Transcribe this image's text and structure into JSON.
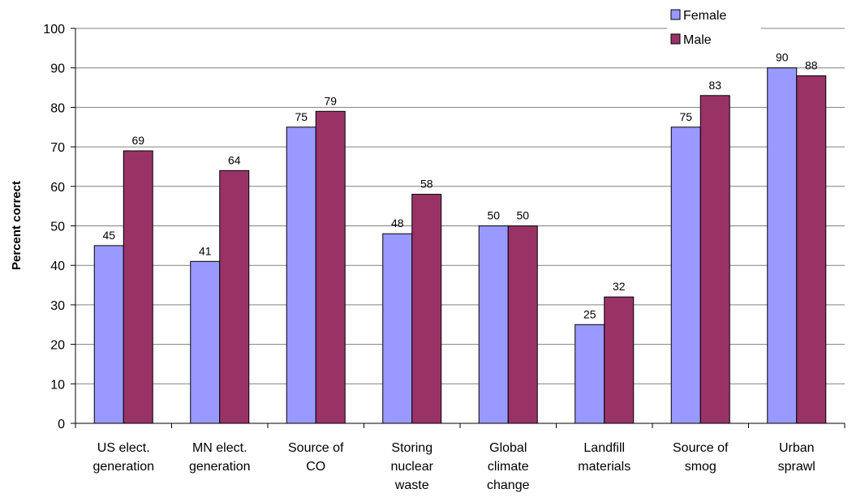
{
  "chart_data": {
    "type": "bar",
    "title": "",
    "xlabel": "",
    "ylabel": "Percent correct",
    "ylim": [
      0,
      100
    ],
    "yticks": [
      0,
      10,
      20,
      30,
      40,
      50,
      60,
      70,
      80,
      90,
      100
    ],
    "grid": true,
    "legend_position": "top-right",
    "categories": [
      [
        "US elect.",
        "generation"
      ],
      [
        "MN elect.",
        "generation"
      ],
      [
        "Source of",
        "CO"
      ],
      [
        "Storing",
        "nuclear",
        "waste"
      ],
      [
        "Global",
        "climate",
        "change"
      ],
      [
        "Landfill",
        "materials"
      ],
      [
        "Source of",
        "smog"
      ],
      [
        "Urban",
        "sprawl"
      ]
    ],
    "series": [
      {
        "name": "Female",
        "color": "#9999ff",
        "values": [
          45,
          41,
          75,
          48,
          50,
          25,
          75,
          90
        ]
      },
      {
        "name": "Male",
        "color": "#993366",
        "values": [
          69,
          64,
          79,
          58,
          50,
          32,
          83,
          88
        ]
      }
    ]
  }
}
